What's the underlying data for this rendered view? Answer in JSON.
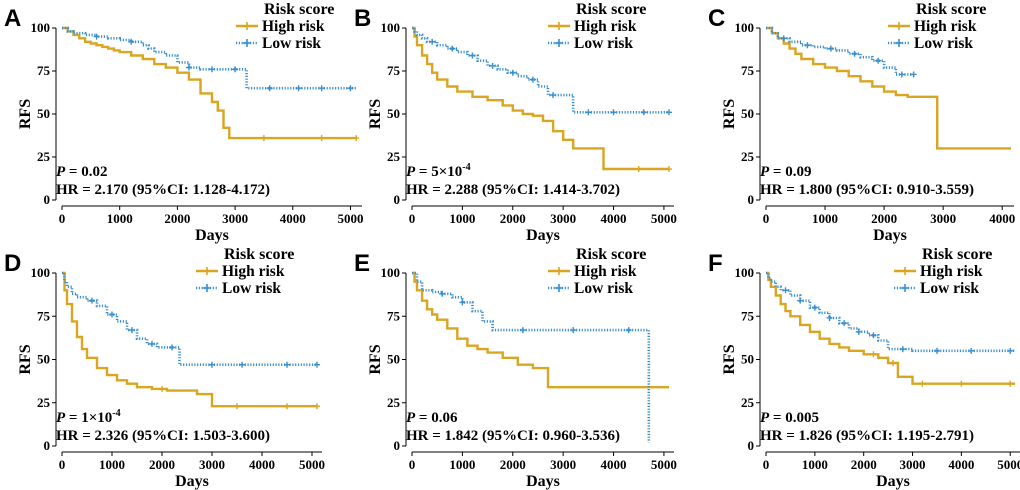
{
  "colors": {
    "high": "#DAA520",
    "low": "#3B8FCF"
  },
  "chart_data": [
    {
      "panel": "A",
      "type": "line",
      "xlabel": "Days",
      "ylabel": "RFS",
      "xlim": [
        0,
        5200
      ],
      "ylim": [
        0,
        100
      ],
      "xticks": [
        0,
        1000,
        2000,
        3000,
        4000,
        5000
      ],
      "xtick_labels": [
        "0",
        "1000",
        "2000",
        "3000",
        "4000",
        "5000"
      ],
      "yticks": [
        0,
        25,
        50,
        75,
        100
      ],
      "ytick_labels": [
        "0",
        "25",
        "50",
        "75",
        "100"
      ],
      "legend_title": "Risk score",
      "p_prefix": "P",
      "p_value": " = 0.02",
      "hr_text": "HR = 2.170 (95%CI: 1.128-4.172)",
      "series": [
        {
          "name": "High risk",
          "color": "#DAA520",
          "x": [
            0,
            100,
            200,
            300,
            400,
            500,
            600,
            700,
            800,
            900,
            1000,
            1200,
            1400,
            1600,
            1800,
            2000,
            2200,
            2400,
            2600,
            2700,
            2800,
            2900,
            3000,
            3500,
            4000,
            4500,
            5100
          ],
          "y": [
            100,
            98,
            96,
            94,
            92,
            91,
            90,
            89,
            88,
            87,
            86,
            84,
            82,
            79,
            77,
            74,
            70,
            62,
            57,
            52,
            42,
            36,
            36,
            36,
            36,
            36,
            36
          ],
          "censor_x": [
            3500,
            4500,
            5100
          ]
        },
        {
          "name": "Low risk",
          "color": "#3B8FCF",
          "x": [
            0,
            100,
            200,
            400,
            600,
            800,
            1000,
            1200,
            1400,
            1500,
            1600,
            1800,
            2000,
            2200,
            2400,
            2600,
            2800,
            3000,
            3200,
            3500,
            4000,
            4500,
            5100
          ],
          "y": [
            100,
            98,
            97,
            96,
            95,
            94,
            93,
            92,
            90,
            88,
            86,
            84,
            80,
            77,
            76,
            76,
            76,
            76,
            65,
            65,
            65,
            65,
            65
          ],
          "censor_x": [
            600,
            1200,
            2200,
            2600,
            3000,
            3600,
            4100,
            4500,
            5000
          ]
        }
      ]
    },
    {
      "panel": "B",
      "type": "line",
      "xlabel": "Days",
      "ylabel": "RFS",
      "xlim": [
        0,
        5200
      ],
      "ylim": [
        0,
        100
      ],
      "xticks": [
        0,
        1000,
        2000,
        3000,
        4000,
        5000
      ],
      "xtick_labels": [
        "0",
        "1000",
        "2000",
        "3000",
        "4000",
        "5000"
      ],
      "yticks": [
        0,
        25,
        50,
        75,
        100
      ],
      "ytick_labels": [
        "0",
        "25",
        "50",
        "75",
        "100"
      ],
      "legend_title": "Risk score",
      "p_prefix": "P",
      "p_value": " = 5×10",
      "p_exponent": "-4",
      "hr_text": "HR = 2.288 (95%CI: 1.414-3.702)",
      "series": [
        {
          "name": "High risk",
          "color": "#DAA520",
          "x": [
            0,
            50,
            100,
            200,
            300,
            400,
            500,
            700,
            900,
            1200,
            1500,
            1800,
            2000,
            2200,
            2400,
            2600,
            2800,
            3000,
            3200,
            3500,
            3800,
            4200,
            5100
          ],
          "y": [
            100,
            95,
            90,
            84,
            79,
            74,
            70,
            66,
            63,
            60,
            58,
            55,
            52,
            50,
            49,
            46,
            40,
            35,
            30,
            30,
            18,
            18,
            18
          ],
          "censor_x": [
            4500,
            5100
          ]
        },
        {
          "name": "Low risk",
          "color": "#3B8FCF",
          "x": [
            0,
            50,
            100,
            200,
            300,
            500,
            700,
            900,
            1100,
            1300,
            1500,
            1700,
            1900,
            2100,
            2300,
            2500,
            2700,
            3000,
            3200,
            3500,
            4000,
            4500,
            5100
          ],
          "y": [
            100,
            98,
            96,
            94,
            92,
            90,
            88,
            86,
            84,
            81,
            78,
            76,
            74,
            72,
            70,
            66,
            61,
            61,
            51,
            51,
            51,
            51,
            51
          ],
          "censor_x": [
            400,
            800,
            1200,
            1600,
            2000,
            2400,
            2800,
            3500,
            4000,
            4600,
            5100
          ]
        }
      ]
    },
    {
      "panel": "C",
      "type": "line",
      "xlabel": "Days",
      "ylabel": "RFS",
      "xlim": [
        0,
        4200
      ],
      "ylim": [
        0,
        100
      ],
      "xticks": [
        0,
        1000,
        2000,
        3000,
        4000
      ],
      "xtick_labels": [
        "0",
        "1000",
        "2000",
        "3000",
        "4000"
      ],
      "yticks": [
        0,
        25,
        50,
        75,
        100
      ],
      "ytick_labels": [
        "0",
        "25",
        "50",
        "75",
        "100"
      ],
      "legend_title": "Risk score",
      "p_prefix": "P",
      "p_value": " = 0.09",
      "hr_text": "HR = 1.800 (95%CI: 0.910-3.559)",
      "series": [
        {
          "name": "High risk",
          "color": "#DAA520",
          "x": [
            0,
            100,
            200,
            300,
            400,
            500,
            600,
            800,
            1000,
            1200,
            1400,
            1600,
            1800,
            2000,
            2200,
            2400,
            2600,
            2800,
            2900,
            3500,
            4150
          ],
          "y": [
            100,
            97,
            94,
            91,
            88,
            85,
            82,
            79,
            77,
            75,
            72,
            69,
            66,
            63,
            61,
            60,
            60,
            60,
            30,
            30,
            30
          ],
          "censor_x": []
        },
        {
          "name": "Low risk",
          "color": "#3B8FCF",
          "x": [
            0,
            100,
            200,
            400,
            600,
            800,
            1000,
            1200,
            1400,
            1600,
            1800,
            2000,
            2200,
            2500
          ],
          "y": [
            100,
            97,
            94,
            92,
            90,
            89,
            88,
            87,
            85,
            83,
            81,
            77,
            73,
            73
          ],
          "censor_x": [
            300,
            700,
            1100,
            1500,
            1900,
            2300,
            2500
          ]
        }
      ]
    },
    {
      "panel": "D",
      "type": "line",
      "xlabel": "Days",
      "ylabel": "RFS",
      "xlim": [
        0,
        5200
      ],
      "ylim": [
        0,
        100
      ],
      "xticks": [
        0,
        1000,
        2000,
        3000,
        4000,
        5000
      ],
      "xtick_labels": [
        "0",
        "1000",
        "2000",
        "3000",
        "4000",
        "5000"
      ],
      "yticks": [
        0,
        25,
        50,
        75,
        100
      ],
      "ytick_labels": [
        "0",
        "25",
        "50",
        "75",
        "100"
      ],
      "legend_title": "Risk score",
      "p_prefix": "P",
      "p_value": " = 1×10",
      "p_exponent": "-4",
      "hr_text": "HR = 2.326 (95%CI: 1.503-3.600)",
      "series": [
        {
          "name": "High risk",
          "color": "#DAA520",
          "x": [
            0,
            50,
            100,
            200,
            300,
            400,
            500,
            700,
            900,
            1100,
            1300,
            1500,
            1800,
            2100,
            2400,
            2700,
            3000,
            3200,
            3500,
            4000,
            5100
          ],
          "y": [
            100,
            90,
            82,
            72,
            63,
            56,
            51,
            45,
            41,
            38,
            36,
            34,
            33,
            32,
            32,
            30,
            23,
            23,
            23,
            23,
            23
          ],
          "censor_x": [
            2000,
            3500,
            4500,
            5100
          ]
        },
        {
          "name": "Low risk",
          "color": "#3B8FCF",
          "x": [
            0,
            50,
            100,
            200,
            300,
            500,
            700,
            900,
            1100,
            1300,
            1500,
            1700,
            1900,
            2100,
            2300,
            2350,
            3000,
            4000,
            5100
          ],
          "y": [
            100,
            95,
            92,
            88,
            86,
            84,
            81,
            76,
            72,
            67,
            62,
            59,
            57,
            57,
            57,
            47,
            47,
            47,
            47
          ],
          "censor_x": [
            600,
            1000,
            1400,
            1800,
            2200,
            3000,
            3600,
            4500,
            5100
          ]
        }
      ]
    },
    {
      "panel": "E",
      "type": "line",
      "xlabel": "Days",
      "ylabel": "RFS",
      "xlim": [
        0,
        5200
      ],
      "ylim": [
        0,
        100
      ],
      "xticks": [
        0,
        1000,
        2000,
        3000,
        4000,
        5000
      ],
      "xtick_labels": [
        "0",
        "1000",
        "2000",
        "3000",
        "4000",
        "5000"
      ],
      "yticks": [
        0,
        25,
        50,
        75,
        100
      ],
      "ytick_labels": [
        "0",
        "25",
        "50",
        "75",
        "100"
      ],
      "legend_title": "Risk score",
      "p_prefix": "P",
      "p_value": " = 0.06",
      "hr_text": "HR = 1.842 (95%CI: 0.960-3.536)",
      "series": [
        {
          "name": "High risk",
          "color": "#DAA520",
          "x": [
            0,
            50,
            100,
            200,
            300,
            400,
            500,
            700,
            900,
            1100,
            1300,
            1500,
            1800,
            2100,
            2400,
            2700,
            3000,
            4000,
            5100
          ],
          "y": [
            100,
            95,
            90,
            84,
            79,
            76,
            73,
            68,
            62,
            58,
            56,
            54,
            51,
            47,
            45,
            34,
            34,
            34,
            34
          ],
          "censor_x": []
        },
        {
          "name": "Low risk",
          "color": "#3B8FCF",
          "x": [
            0,
            100,
            200,
            400,
            600,
            800,
            1000,
            1200,
            1400,
            1600,
            2000,
            3000,
            4000,
            4700,
            4700
          ],
          "y": [
            100,
            95,
            90,
            89,
            88,
            86,
            83,
            78,
            72,
            67,
            67,
            67,
            67,
            67,
            2
          ],
          "censor_x": [
            600,
            1000,
            2200,
            3200,
            4300
          ]
        }
      ]
    },
    {
      "panel": "F",
      "type": "line",
      "xlabel": "Days",
      "ylabel": "RFS",
      "xlim": [
        0,
        5200
      ],
      "ylim": [
        0,
        100
      ],
      "xticks": [
        0,
        1000,
        2000,
        3000,
        4000,
        5000
      ],
      "xtick_labels": [
        "0",
        "1000",
        "2000",
        "3000",
        "4000",
        "5000"
      ],
      "yticks": [
        0,
        25,
        50,
        75,
        100
      ],
      "ytick_labels": [
        "0",
        "25",
        "50",
        "75",
        "100"
      ],
      "legend_title": "Risk score",
      "p_prefix": "P",
      "p_value": " = 0.005",
      "hr_text": "HR = 1.826 (95%CI: 1.195-2.791)",
      "series": [
        {
          "name": "High risk",
          "color": "#DAA520",
          "x": [
            0,
            50,
            100,
            200,
            300,
            400,
            500,
            700,
            900,
            1100,
            1300,
            1500,
            1700,
            2000,
            2300,
            2500,
            2700,
            3000,
            3500,
            4000,
            5100
          ],
          "y": [
            100,
            96,
            92,
            87,
            82,
            78,
            75,
            70,
            66,
            62,
            59,
            57,
            55,
            53,
            51,
            48,
            40,
            36,
            36,
            36,
            36
          ],
          "censor_x": [
            2200,
            2600,
            3200,
            4000,
            5000
          ]
        },
        {
          "name": "Low risk",
          "color": "#3B8FCF",
          "x": [
            0,
            50,
            100,
            200,
            300,
            500,
            700,
            900,
            1100,
            1300,
            1500,
            1700,
            1900,
            2100,
            2300,
            2500,
            3000,
            4000,
            5100
          ],
          "y": [
            100,
            97,
            95,
            92,
            90,
            87,
            84,
            80,
            77,
            74,
            71,
            68,
            66,
            64,
            61,
            56,
            55,
            55,
            55
          ],
          "censor_x": [
            400,
            700,
            1000,
            1300,
            1600,
            1900,
            2200,
            2800,
            3500,
            4200,
            5000
          ]
        }
      ]
    }
  ]
}
